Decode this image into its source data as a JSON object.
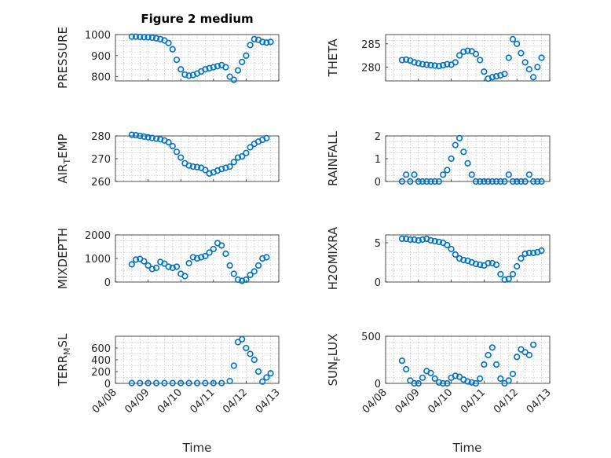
{
  "figure": {
    "title": "Figure 2 medium"
  },
  "chart_data": [
    {
      "type": "scatter",
      "ylabel": "PRESSURE",
      "ylim": [
        780,
        1000
      ],
      "yticks": [
        800,
        900,
        1000
      ],
      "xlim": [
        "04/08",
        "04/13"
      ],
      "grid": true,
      "points": [
        [
          "04/08 12:00",
          990
        ],
        [
          "04/08 15:00",
          990
        ],
        [
          "04/08 18:00",
          989
        ],
        [
          "04/08 21:00",
          988
        ],
        [
          "04/09 00:00",
          987
        ],
        [
          "04/09 03:00",
          985
        ],
        [
          "04/09 06:00",
          982
        ],
        [
          "04/09 09:00",
          978
        ],
        [
          "04/09 12:00",
          972
        ],
        [
          "04/09 15:00",
          960
        ],
        [
          "04/09 18:00",
          930
        ],
        [
          "04/09 21:00",
          880
        ],
        [
          "04/10 00:00",
          835
        ],
        [
          "04/10 03:00",
          810
        ],
        [
          "04/10 06:00",
          805
        ],
        [
          "04/10 09:00",
          808
        ],
        [
          "04/10 12:00",
          815
        ],
        [
          "04/10 15:00",
          825
        ],
        [
          "04/10 18:00",
          835
        ],
        [
          "04/10 21:00",
          840
        ],
        [
          "04/11 00:00",
          845
        ],
        [
          "04/11 03:00",
          850
        ],
        [
          "04/11 06:00",
          855
        ],
        [
          "04/11 09:00",
          845
        ],
        [
          "04/11 12:00",
          800
        ],
        [
          "04/11 15:00",
          785
        ],
        [
          "04/11 18:00",
          830
        ],
        [
          "04/11 21:00",
          870
        ],
        [
          "04/12 00:00",
          900
        ],
        [
          "04/12 03:00",
          950
        ],
        [
          "04/12 06:00",
          978
        ],
        [
          "04/12 09:00",
          975
        ],
        [
          "04/12 12:00",
          965
        ],
        [
          "04/12 15:00",
          962
        ],
        [
          "04/12 18:00",
          965
        ]
      ]
    },
    {
      "type": "scatter",
      "ylabel": "THETA",
      "ylim": [
        277,
        287
      ],
      "yticks": [
        280,
        285
      ],
      "xlim": [
        "04/08",
        "04/13"
      ],
      "grid": true,
      "points": [
        [
          "04/08 12:00",
          281.5
        ],
        [
          "04/08 15:00",
          281.6
        ],
        [
          "04/08 18:00",
          281.4
        ],
        [
          "04/08 21:00",
          281.0
        ],
        [
          "04/09 00:00",
          280.8
        ],
        [
          "04/09 03:00",
          280.6
        ],
        [
          "04/09 06:00",
          280.5
        ],
        [
          "04/09 09:00",
          280.4
        ],
        [
          "04/09 12:00",
          280.3
        ],
        [
          "04/09 15:00",
          280.2
        ],
        [
          "04/09 18:00",
          280.4
        ],
        [
          "04/09 21:00",
          280.6
        ],
        [
          "04/10 00:00",
          280.5
        ],
        [
          "04/10 03:00",
          281.0
        ],
        [
          "04/10 06:00",
          282.5
        ],
        [
          "04/10 09:00",
          283.3
        ],
        [
          "04/10 12:00",
          283.5
        ],
        [
          "04/10 15:00",
          283.4
        ],
        [
          "04/10 18:00",
          282.8
        ],
        [
          "04/10 21:00",
          281.5
        ],
        [
          "04/11 00:00",
          279.0
        ],
        [
          "04/11 03:00",
          277.5
        ],
        [
          "04/11 06:00",
          277.8
        ],
        [
          "04/11 09:00",
          278.0
        ],
        [
          "04/11 12:00",
          278.2
        ],
        [
          "04/11 15:00",
          278.5
        ],
        [
          "04/11 18:00",
          282.0
        ],
        [
          "04/11 21:00",
          286.0
        ],
        [
          "04/12 00:00",
          285.0
        ],
        [
          "04/12 03:00",
          283.0
        ],
        [
          "04/12 06:00",
          281.0
        ],
        [
          "04/12 09:00",
          279.5
        ],
        [
          "04/12 12:00",
          277.8
        ],
        [
          "04/12 15:00",
          280.0
        ],
        [
          "04/12 18:00",
          282.0
        ]
      ]
    },
    {
      "type": "scatter",
      "ylabel": "AIR_TEMP",
      "ylim": [
        260,
        280
      ],
      "yticks": [
        260,
        270,
        280
      ],
      "xlim": [
        "04/08",
        "04/13"
      ],
      "grid": true,
      "points": [
        [
          "04/08 12:00",
          280.5
        ],
        [
          "04/08 15:00",
          280.3
        ],
        [
          "04/08 18:00",
          280.0
        ],
        [
          "04/08 21:00",
          279.7
        ],
        [
          "04/09 00:00",
          279.4
        ],
        [
          "04/09 03:00",
          279.1
        ],
        [
          "04/09 06:00",
          278.8
        ],
        [
          "04/09 09:00",
          278.5
        ],
        [
          "04/09 12:00",
          278.0
        ],
        [
          "04/09 15:00",
          277.2
        ],
        [
          "04/09 18:00",
          275.5
        ],
        [
          "04/09 21:00",
          273.0
        ],
        [
          "04/10 00:00",
          270.5
        ],
        [
          "04/10 03:00",
          268.0
        ],
        [
          "04/10 06:00",
          267.0
        ],
        [
          "04/10 09:00",
          266.5
        ],
        [
          "04/10 12:00",
          266.3
        ],
        [
          "04/10 15:00",
          266.0
        ],
        [
          "04/10 18:00",
          265.0
        ],
        [
          "04/10 21:00",
          263.5
        ],
        [
          "04/11 00:00",
          264.0
        ],
        [
          "04/11 03:00",
          264.8
        ],
        [
          "04/11 06:00",
          265.5
        ],
        [
          "04/11 09:00",
          266.0
        ],
        [
          "04/11 12:00",
          266.5
        ],
        [
          "04/11 15:00",
          268.5
        ],
        [
          "04/11 18:00",
          270.5
        ],
        [
          "04/11 21:00",
          271.0
        ],
        [
          "04/12 00:00",
          272.5
        ],
        [
          "04/12 03:00",
          275.0
        ],
        [
          "04/12 06:00",
          276.5
        ],
        [
          "04/12 09:00",
          277.5
        ],
        [
          "04/12 12:00",
          278.3
        ],
        [
          "04/12 15:00",
          279.0
        ]
      ]
    },
    {
      "type": "scatter",
      "ylabel": "RAINFALL",
      "ylim": [
        0,
        2
      ],
      "yticks": [
        0,
        1,
        2
      ],
      "xlim": [
        "04/08",
        "04/13"
      ],
      "grid": true,
      "points": [
        [
          "04/08 12:00",
          0.0
        ],
        [
          "04/08 15:00",
          0.3
        ],
        [
          "04/08 18:00",
          0.0
        ],
        [
          "04/08 21:00",
          0.3
        ],
        [
          "04/09 00:00",
          0.0
        ],
        [
          "04/09 03:00",
          0.0
        ],
        [
          "04/09 06:00",
          0.0
        ],
        [
          "04/09 09:00",
          0.0
        ],
        [
          "04/09 12:00",
          0.0
        ],
        [
          "04/09 15:00",
          0.0
        ],
        [
          "04/09 18:00",
          0.3
        ],
        [
          "04/09 21:00",
          0.5
        ],
        [
          "04/10 00:00",
          1.0
        ],
        [
          "04/10 03:00",
          1.6
        ],
        [
          "04/10 06:00",
          1.9
        ],
        [
          "04/10 09:00",
          1.3
        ],
        [
          "04/10 12:00",
          0.8
        ],
        [
          "04/10 15:00",
          0.3
        ],
        [
          "04/10 18:00",
          0.0
        ],
        [
          "04/10 21:00",
          0.0
        ],
        [
          "04/11 00:00",
          0.0
        ],
        [
          "04/11 03:00",
          0.0
        ],
        [
          "04/11 06:00",
          0.0
        ],
        [
          "04/11 09:00",
          0.0
        ],
        [
          "04/11 12:00",
          0.0
        ],
        [
          "04/11 15:00",
          0.0
        ],
        [
          "04/11 18:00",
          0.3
        ],
        [
          "04/11 21:00",
          0.0
        ],
        [
          "04/12 00:00",
          0.0
        ],
        [
          "04/12 03:00",
          0.0
        ],
        [
          "04/12 06:00",
          0.0
        ],
        [
          "04/12 09:00",
          0.3
        ],
        [
          "04/12 12:00",
          0.0
        ],
        [
          "04/12 15:00",
          0.0
        ],
        [
          "04/12 18:00",
          0.0
        ]
      ]
    },
    {
      "type": "scatter",
      "ylabel": "MIXDEPTH",
      "ylim": [
        0,
        2000
      ],
      "yticks": [
        0,
        1000,
        2000
      ],
      "xlim": [
        "04/08",
        "04/13"
      ],
      "grid": true,
      "points": [
        [
          "04/08 12:00",
          750
        ],
        [
          "04/08 15:00",
          950
        ],
        [
          "04/08 18:00",
          980
        ],
        [
          "04/08 21:00",
          880
        ],
        [
          "04/09 00:00",
          700
        ],
        [
          "04/09 03:00",
          550
        ],
        [
          "04/09 06:00",
          600
        ],
        [
          "04/09 09:00",
          850
        ],
        [
          "04/09 12:00",
          780
        ],
        [
          "04/09 15:00",
          650
        ],
        [
          "04/09 18:00",
          600
        ],
        [
          "04/09 21:00",
          650
        ],
        [
          "04/10 00:00",
          350
        ],
        [
          "04/10 03:00",
          250
        ],
        [
          "04/10 06:00",
          800
        ],
        [
          "04/10 09:00",
          1050
        ],
        [
          "04/10 12:00",
          1000
        ],
        [
          "04/10 15:00",
          1050
        ],
        [
          "04/10 18:00",
          1100
        ],
        [
          "04/10 21:00",
          1250
        ],
        [
          "04/11 00:00",
          1400
        ],
        [
          "04/11 03:00",
          1650
        ],
        [
          "04/11 06:00",
          1550
        ],
        [
          "04/11 09:00",
          1200
        ],
        [
          "04/11 12:00",
          700
        ],
        [
          "04/11 15:00",
          350
        ],
        [
          "04/11 18:00",
          100
        ],
        [
          "04/11 21:00",
          50
        ],
        [
          "04/12 00:00",
          100
        ],
        [
          "04/12 03:00",
          300
        ],
        [
          "04/12 06:00",
          450
        ],
        [
          "04/12 09:00",
          700
        ],
        [
          "04/12 12:00",
          1000
        ],
        [
          "04/12 15:00",
          1050
        ]
      ]
    },
    {
      "type": "scatter",
      "ylabel": "H2OMIXRA",
      "ylim": [
        0,
        6
      ],
      "yticks": [
        0,
        5
      ],
      "xlim": [
        "04/08",
        "04/13"
      ],
      "grid": true,
      "points": [
        [
          "04/08 12:00",
          5.5
        ],
        [
          "04/08 15:00",
          5.5
        ],
        [
          "04/08 18:00",
          5.4
        ],
        [
          "04/08 21:00",
          5.4
        ],
        [
          "04/09 00:00",
          5.3
        ],
        [
          "04/09 03:00",
          5.4
        ],
        [
          "04/09 06:00",
          5.5
        ],
        [
          "04/09 09:00",
          5.3
        ],
        [
          "04/09 12:00",
          5.2
        ],
        [
          "04/09 15:00",
          5.1
        ],
        [
          "04/09 18:00",
          5.0
        ],
        [
          "04/09 21:00",
          4.7
        ],
        [
          "04/10 00:00",
          4.2
        ],
        [
          "04/10 03:00",
          3.5
        ],
        [
          "04/10 06:00",
          3.0
        ],
        [
          "04/10 09:00",
          2.8
        ],
        [
          "04/10 12:00",
          2.7
        ],
        [
          "04/10 15:00",
          2.5
        ],
        [
          "04/10 18:00",
          2.3
        ],
        [
          "04/10 21:00",
          2.2
        ],
        [
          "04/11 00:00",
          2.1
        ],
        [
          "04/11 03:00",
          2.4
        ],
        [
          "04/11 06:00",
          2.4
        ],
        [
          "04/11 09:00",
          2.2
        ],
        [
          "04/11 12:00",
          1.0
        ],
        [
          "04/11 15:00",
          0.3
        ],
        [
          "04/11 18:00",
          0.4
        ],
        [
          "04/11 21:00",
          1.0
        ],
        [
          "04/12 00:00",
          2.0
        ],
        [
          "04/12 03:00",
          3.0
        ],
        [
          "04/12 06:00",
          3.6
        ],
        [
          "04/12 09:00",
          3.7
        ],
        [
          "04/12 12:00",
          3.7
        ],
        [
          "04/12 15:00",
          3.8
        ],
        [
          "04/12 18:00",
          4.0
        ]
      ]
    },
    {
      "type": "scatter",
      "ylabel": "TERR_MSL",
      "ylim": [
        0,
        800
      ],
      "yticks": [
        0,
        200,
        400,
        600
      ],
      "xlim": [
        "04/08",
        "04/13"
      ],
      "grid": true,
      "points": [
        [
          "04/08 12:00",
          5
        ],
        [
          "04/08 18:00",
          5
        ],
        [
          "04/09 00:00",
          5
        ],
        [
          "04/09 06:00",
          5
        ],
        [
          "04/09 12:00",
          5
        ],
        [
          "04/09 18:00",
          5
        ],
        [
          "04/10 00:00",
          5
        ],
        [
          "04/10 06:00",
          5
        ],
        [
          "04/10 12:00",
          5
        ],
        [
          "04/10 18:00",
          5
        ],
        [
          "04/11 00:00",
          5
        ],
        [
          "04/11 06:00",
          5
        ],
        [
          "04/11 12:00",
          40
        ],
        [
          "04/11 15:00",
          300
        ],
        [
          "04/11 18:00",
          700
        ],
        [
          "04/11 21:00",
          750
        ],
        [
          "04/12 00:00",
          600
        ],
        [
          "04/12 03:00",
          500
        ],
        [
          "04/12 06:00",
          400
        ],
        [
          "04/12 09:00",
          200
        ],
        [
          "04/12 12:00",
          30
        ],
        [
          "04/12 15:00",
          100
        ],
        [
          "04/12 18:00",
          170
        ]
      ]
    },
    {
      "type": "scatter",
      "ylabel": "SUN_FLUX",
      "ylim": [
        0,
        500
      ],
      "yticks": [
        0,
        500
      ],
      "xlim": [
        "04/08",
        "04/13"
      ],
      "grid": true,
      "points": [
        [
          "04/08 12:00",
          240
        ],
        [
          "04/08 15:00",
          150
        ],
        [
          "04/08 18:00",
          30
        ],
        [
          "04/08 21:00",
          0
        ],
        [
          "04/09 00:00",
          0
        ],
        [
          "04/09 03:00",
          60
        ],
        [
          "04/09 06:00",
          130
        ],
        [
          "04/09 09:00",
          110
        ],
        [
          "04/09 12:00",
          50
        ],
        [
          "04/09 15:00",
          10
        ],
        [
          "04/09 18:00",
          0
        ],
        [
          "04/09 21:00",
          0
        ],
        [
          "04/10 00:00",
          60
        ],
        [
          "04/10 03:00",
          80
        ],
        [
          "04/10 06:00",
          70
        ],
        [
          "04/10 09:00",
          40
        ],
        [
          "04/10 12:00",
          20
        ],
        [
          "04/10 15:00",
          10
        ],
        [
          "04/10 18:00",
          0
        ],
        [
          "04/10 21:00",
          50
        ],
        [
          "04/11 00:00",
          200
        ],
        [
          "04/11 03:00",
          300
        ],
        [
          "04/11 06:00",
          380
        ],
        [
          "04/11 09:00",
          200
        ],
        [
          "04/11 12:00",
          50
        ],
        [
          "04/11 15:00",
          0
        ],
        [
          "04/11 18:00",
          30
        ],
        [
          "04/11 21:00",
          100
        ],
        [
          "04/12 00:00",
          280
        ],
        [
          "04/12 03:00",
          360
        ],
        [
          "04/12 06:00",
          330
        ],
        [
          "04/12 09:00",
          300
        ],
        [
          "04/12 12:00",
          410
        ]
      ]
    }
  ],
  "xticks": [
    "04/08",
    "04/09",
    "04/10",
    "04/11",
    "04/12",
    "04/13"
  ],
  "xlabel": "Time",
  "colors": {
    "marker": "#0072BD",
    "axis": "#262626",
    "grid": "#b0b0b0"
  }
}
